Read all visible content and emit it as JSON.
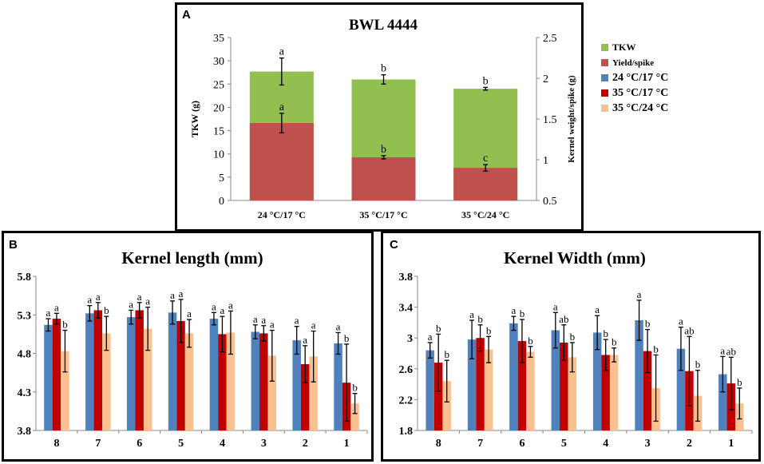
{
  "legend": {
    "items": [
      {
        "label": "TKW",
        "color": "#92c050"
      },
      {
        "label": "Yield/spike",
        "color": "#c0504d"
      },
      {
        "label": "24 °C/17 °C",
        "color": "#4f81bd"
      },
      {
        "label": "35 °C/17 °C",
        "color": "#c00000"
      },
      {
        "label": "35 °C/24 °C",
        "color": "#fac090"
      }
    ]
  },
  "panel_letters": {
    "a": "A",
    "b": "B",
    "c": "C"
  },
  "chart_data": [
    {
      "id": "A",
      "type": "bar",
      "stacked": true,
      "title": "BWL 4444",
      "categories": [
        "24 °C/17 °C",
        "35 °C/17 °C",
        "35 °C/24 °C"
      ],
      "ylabel": "TKW (g)",
      "y2label": "Kernel weight/spike (g)",
      "ylim": [
        0,
        35
      ],
      "yticks": [
        "0",
        "5",
        "10",
        "15",
        "20",
        "25",
        "30",
        "35"
      ],
      "y2lim": [
        0.5,
        2.5
      ],
      "y2ticks": [
        "0.5",
        "1",
        "1.5",
        "2",
        "2.5"
      ],
      "series": [
        {
          "name": "Yield/spike",
          "axis": "right",
          "color": "#c0504d",
          "values": [
            1.45,
            1.03,
            0.9
          ],
          "errors": [
            0.12,
            0.02,
            0.04
          ],
          "letters": [
            "a",
            "b",
            "c"
          ]
        },
        {
          "name": "TKW",
          "axis": "left",
          "color": "#92c050",
          "values": [
            27.7,
            26.0,
            24.0
          ],
          "errors": [
            2.9,
            1.0,
            0.3
          ],
          "letters": [
            "a",
            "b",
            "b"
          ]
        }
      ]
    },
    {
      "id": "B",
      "type": "bar",
      "title": "Kernel length (mm)",
      "categories": [
        "8",
        "7",
        "6",
        "5",
        "4",
        "3",
        "2",
        "1"
      ],
      "ylim": [
        3.8,
        5.8
      ],
      "yticks": [
        "3.8",
        "4.3",
        "4.8",
        "5.3",
        "5.8"
      ],
      "series": [
        {
          "name": "24 °C/17 °C",
          "color": "#4f81bd",
          "values": [
            5.17,
            5.32,
            5.27,
            5.33,
            5.25,
            5.08,
            4.97,
            4.93
          ],
          "errors": [
            0.08,
            0.1,
            0.09,
            0.15,
            0.08,
            0.09,
            0.18,
            0.14
          ],
          "letters": [
            "a",
            "a",
            "a",
            "a",
            "a",
            "a",
            "a",
            "a"
          ]
        },
        {
          "name": "35 °C/17 °C",
          "color": "#c00000",
          "values": [
            5.25,
            5.36,
            5.36,
            5.22,
            5.05,
            5.06,
            4.66,
            4.42
          ],
          "errors": [
            0.07,
            0.1,
            0.1,
            0.28,
            0.23,
            0.1,
            0.24,
            0.5
          ],
          "letters": [
            "a",
            "a",
            "a",
            "a",
            "a",
            "a",
            "a",
            "b"
          ]
        },
        {
          "name": "35 °C/24 °C",
          "color": "#fac090",
          "values": [
            4.83,
            5.06,
            5.12,
            5.06,
            5.07,
            4.77,
            4.76,
            4.15
          ],
          "errors": [
            0.27,
            0.22,
            0.28,
            0.18,
            0.28,
            0.33,
            0.33,
            0.13
          ],
          "letters": [
            "b",
            "b",
            "a",
            "a",
            "a",
            "a",
            "a",
            "b"
          ]
        }
      ]
    },
    {
      "id": "C",
      "type": "bar",
      "title": "Kernel Width (mm)",
      "categories": [
        "8",
        "7",
        "6",
        "5",
        "4",
        "3",
        "2",
        "1"
      ],
      "ylim": [
        1.8,
        3.8
      ],
      "yticks": [
        "1.8",
        "2.2",
        "2.6",
        "3",
        "3.4",
        "3.8"
      ],
      "series": [
        {
          "name": "24 °C/17 °C",
          "color": "#4f81bd",
          "values": [
            2.84,
            2.98,
            3.19,
            3.1,
            3.07,
            3.23,
            2.86,
            2.53
          ],
          "errors": [
            0.1,
            0.25,
            0.09,
            0.23,
            0.22,
            0.26,
            0.28,
            0.23
          ],
          "letters": [
            "a",
            "a",
            "a",
            "a",
            "a",
            "a",
            "a",
            "a"
          ]
        },
        {
          "name": "35 °C/17 °C",
          "color": "#c00000",
          "values": [
            2.68,
            3.0,
            2.96,
            2.94,
            2.78,
            2.83,
            2.57,
            2.41
          ],
          "errors": [
            0.37,
            0.17,
            0.28,
            0.23,
            0.2,
            0.28,
            0.45,
            0.34
          ],
          "letters": [
            "b",
            "b",
            "b",
            "ab",
            "b",
            "b",
            "ab",
            "ab"
          ]
        },
        {
          "name": "35 °C/24 °C",
          "color": "#fac090",
          "values": [
            2.44,
            2.85,
            2.82,
            2.75,
            2.78,
            2.35,
            2.25,
            2.15
          ],
          "errors": [
            0.27,
            0.17,
            0.07,
            0.19,
            0.09,
            0.43,
            0.33,
            0.2
          ],
          "letters": [
            "b",
            "b",
            "b",
            "b",
            "b",
            "b",
            "b",
            "b"
          ]
        }
      ]
    }
  ]
}
